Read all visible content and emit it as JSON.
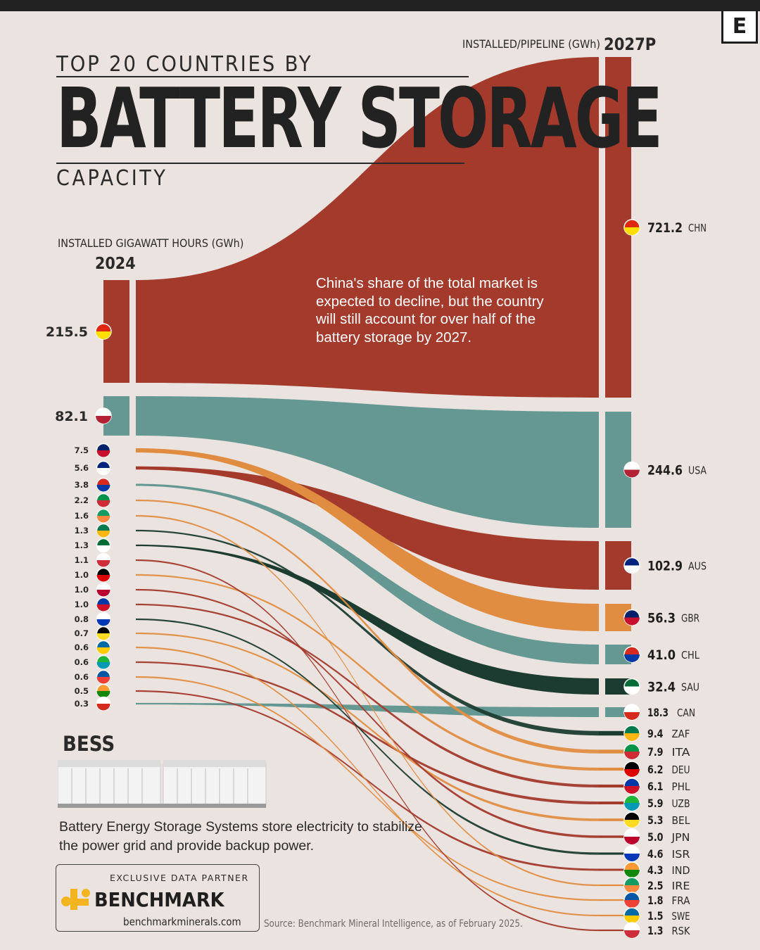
{
  "title": {
    "top": "TOP 20 COUNTRIES BY",
    "main": "BATTERY STORAGE",
    "bottom": "CAPACITY"
  },
  "left_axis": {
    "label": "INSTALLED GIGAWATT HOURS (GWh)",
    "year": "2024"
  },
  "right_axis": {
    "label": "INSTALLED/PIPELINE (GWh)",
    "year": "2027P"
  },
  "annotation": "China's share of the total market is expected to decline, but the country will still account for over half of the battery storage by 2027.",
  "bess": {
    "title": "BESS",
    "description": "Battery Energy Storage Systems store electricity to stabilize the power grid and provide backup power."
  },
  "partner": {
    "label": "EXCLUSIVE DATA PARTNER",
    "name": "BENCHMARK",
    "url": "benchmarkminerals.com"
  },
  "source": "Source: Benchmark Mineral Intelligence, as of February 2025.",
  "logo": "E",
  "colors": {
    "background": "#ebe3df",
    "red": "#a33a2c",
    "teal": "#659893",
    "orange": "#e08d42",
    "dark_green": "#1c3c31",
    "text": "#222222"
  },
  "chart_data": {
    "type": "sankey",
    "units": "GWh",
    "left_year": "2024",
    "right_year": "2027P",
    "left_order": [
      "CHN",
      "USA",
      "GBR",
      "AUS",
      "CHL",
      "ITA",
      "IRE",
      "ZAF",
      "SAU",
      "RSK",
      "DEU",
      "JPN",
      "PHL",
      "ISR",
      "BEL",
      "SWE",
      "UZB",
      "FRA",
      "IND",
      "CAN"
    ],
    "left_values": [
      "215.5",
      "82.1",
      "7.5",
      "5.6",
      "3.8",
      "2.2",
      "1.6",
      "1.3",
      "1.3",
      "1.1",
      "1.0",
      "1.0",
      "1.0",
      "0.8",
      "0.7",
      "0.6",
      "0.6",
      "0.6",
      "0.5",
      "0.3"
    ],
    "right_order": [
      "CHN",
      "USA",
      "AUS",
      "GBR",
      "CHL",
      "SAU",
      "CAN",
      "ZAF",
      "ITA",
      "DEU",
      "PHL",
      "UZB",
      "BEL",
      "JPN",
      "ISR",
      "IND",
      "IRE",
      "FRA",
      "SWE",
      "RSK"
    ],
    "right_values": [
      "721.2",
      "244.6",
      "102.9",
      "56.3",
      "41.0",
      "32.4",
      "18.3",
      "9.4",
      "7.9",
      "6.2",
      "6.1",
      "5.9",
      "5.3",
      "5.0",
      "4.6",
      "4.3",
      "2.5",
      "1.8",
      "1.5",
      "1.3"
    ],
    "flows": [
      {
        "code": "CHN",
        "v2024": 215.5,
        "v2027": 721.2,
        "color": "red"
      },
      {
        "code": "USA",
        "v2024": 82.1,
        "v2027": 244.6,
        "color": "teal"
      },
      {
        "code": "GBR",
        "v2024": 7.5,
        "v2027": 56.3,
        "color": "orange"
      },
      {
        "code": "AUS",
        "v2024": 5.6,
        "v2027": 102.9,
        "color": "red"
      },
      {
        "code": "CHL",
        "v2024": 3.8,
        "v2027": 41.0,
        "color": "teal"
      },
      {
        "code": "ITA",
        "v2024": 2.2,
        "v2027": 7.9,
        "color": "orange"
      },
      {
        "code": "IRE",
        "v2024": 1.6,
        "v2027": 2.5,
        "color": "orange"
      },
      {
        "code": "ZAF",
        "v2024": 1.3,
        "v2027": 9.4,
        "color": "dark_green"
      },
      {
        "code": "SAU",
        "v2024": 1.3,
        "v2027": 32.4,
        "color": "dark_green"
      },
      {
        "code": "RSK",
        "v2024": 1.1,
        "v2027": 1.3,
        "color": "red"
      },
      {
        "code": "DEU",
        "v2024": 1.0,
        "v2027": 6.2,
        "color": "orange"
      },
      {
        "code": "JPN",
        "v2024": 1.0,
        "v2027": 5.0,
        "color": "red"
      },
      {
        "code": "PHL",
        "v2024": 1.0,
        "v2027": 6.1,
        "color": "red"
      },
      {
        "code": "ISR",
        "v2024": 0.8,
        "v2027": 4.6,
        "color": "dark_green"
      },
      {
        "code": "BEL",
        "v2024": 0.7,
        "v2027": 5.3,
        "color": "orange"
      },
      {
        "code": "SWE",
        "v2024": 0.6,
        "v2027": 1.5,
        "color": "orange"
      },
      {
        "code": "UZB",
        "v2024": 0.6,
        "v2027": 5.9,
        "color": "red"
      },
      {
        "code": "FRA",
        "v2024": 0.6,
        "v2027": 1.8,
        "color": "orange"
      },
      {
        "code": "IND",
        "v2024": 0.5,
        "v2027": 4.3,
        "color": "red"
      },
      {
        "code": "CAN",
        "v2024": 0.3,
        "v2027": 18.3,
        "color": "teal"
      }
    ]
  }
}
